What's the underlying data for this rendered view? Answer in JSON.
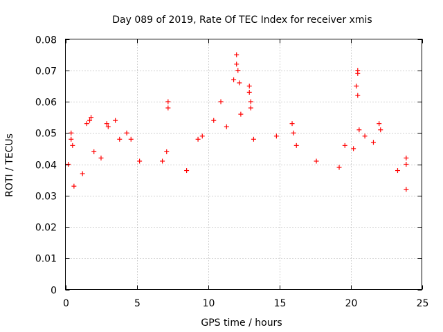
{
  "chart_data": {
    "type": "scatter",
    "title": "Day 089 of 2019, Rate Of TEC Index for receiver xmis",
    "xlabel": "GPS time / hours",
    "ylabel": "ROTI / TECUs",
    "xlim": [
      0,
      25
    ],
    "ylim": [
      0,
      0.08
    ],
    "x_ticks": [
      0,
      5,
      10,
      15,
      20,
      25
    ],
    "y_ticks": [
      0,
      0.01,
      0.02,
      0.03,
      0.04,
      0.05,
      0.06,
      0.07,
      0.08
    ],
    "x_tick_labels": [
      "0",
      "5",
      "10",
      "15",
      "20",
      "25"
    ],
    "y_tick_labels": [
      "0",
      "0.01",
      "0.02",
      "0.03",
      "0.04",
      "0.05",
      "0.06",
      "0.07",
      "0.08"
    ],
    "grid": true,
    "marker": "+",
    "color": "#ff0000",
    "series": [
      {
        "name": "ROTI",
        "points": [
          [
            0.2,
            0.04
          ],
          [
            0.4,
            0.05
          ],
          [
            0.4,
            0.048
          ],
          [
            0.5,
            0.046
          ],
          [
            0.6,
            0.033
          ],
          [
            1.2,
            0.037
          ],
          [
            1.5,
            0.053
          ],
          [
            1.7,
            0.054
          ],
          [
            1.8,
            0.055
          ],
          [
            2.0,
            0.044
          ],
          [
            2.5,
            0.042
          ],
          [
            2.9,
            0.053
          ],
          [
            3.0,
            0.052
          ],
          [
            3.5,
            0.054
          ],
          [
            3.8,
            0.048
          ],
          [
            4.3,
            0.05
          ],
          [
            4.6,
            0.048
          ],
          [
            5.2,
            0.041
          ],
          [
            6.8,
            0.041
          ],
          [
            7.2,
            0.06
          ],
          [
            7.2,
            0.058
          ],
          [
            7.1,
            0.044
          ],
          [
            8.5,
            0.038
          ],
          [
            9.3,
            0.048
          ],
          [
            9.6,
            0.049
          ],
          [
            10.4,
            0.054
          ],
          [
            10.9,
            0.06
          ],
          [
            11.3,
            0.052
          ],
          [
            11.8,
            0.067
          ],
          [
            12.0,
            0.075
          ],
          [
            12.0,
            0.072
          ],
          [
            12.1,
            0.07
          ],
          [
            12.2,
            0.066
          ],
          [
            12.3,
            0.056
          ],
          [
            12.9,
            0.065
          ],
          [
            12.9,
            0.063
          ],
          [
            13.0,
            0.06
          ],
          [
            13.0,
            0.058
          ],
          [
            13.2,
            0.048
          ],
          [
            14.8,
            0.049
          ],
          [
            15.9,
            0.053
          ],
          [
            16.0,
            0.05
          ],
          [
            16.2,
            0.046
          ],
          [
            17.6,
            0.041
          ],
          [
            19.2,
            0.039
          ],
          [
            19.6,
            0.046
          ],
          [
            20.2,
            0.045
          ],
          [
            20.5,
            0.07
          ],
          [
            20.5,
            0.069
          ],
          [
            20.4,
            0.065
          ],
          [
            20.5,
            0.062
          ],
          [
            20.6,
            0.051
          ],
          [
            21.0,
            0.049
          ],
          [
            21.6,
            0.047
          ],
          [
            22.0,
            0.053
          ],
          [
            22.1,
            0.051
          ],
          [
            23.3,
            0.038
          ],
          [
            23.9,
            0.042
          ],
          [
            23.9,
            0.04
          ],
          [
            23.9,
            0.032
          ]
        ]
      }
    ]
  }
}
